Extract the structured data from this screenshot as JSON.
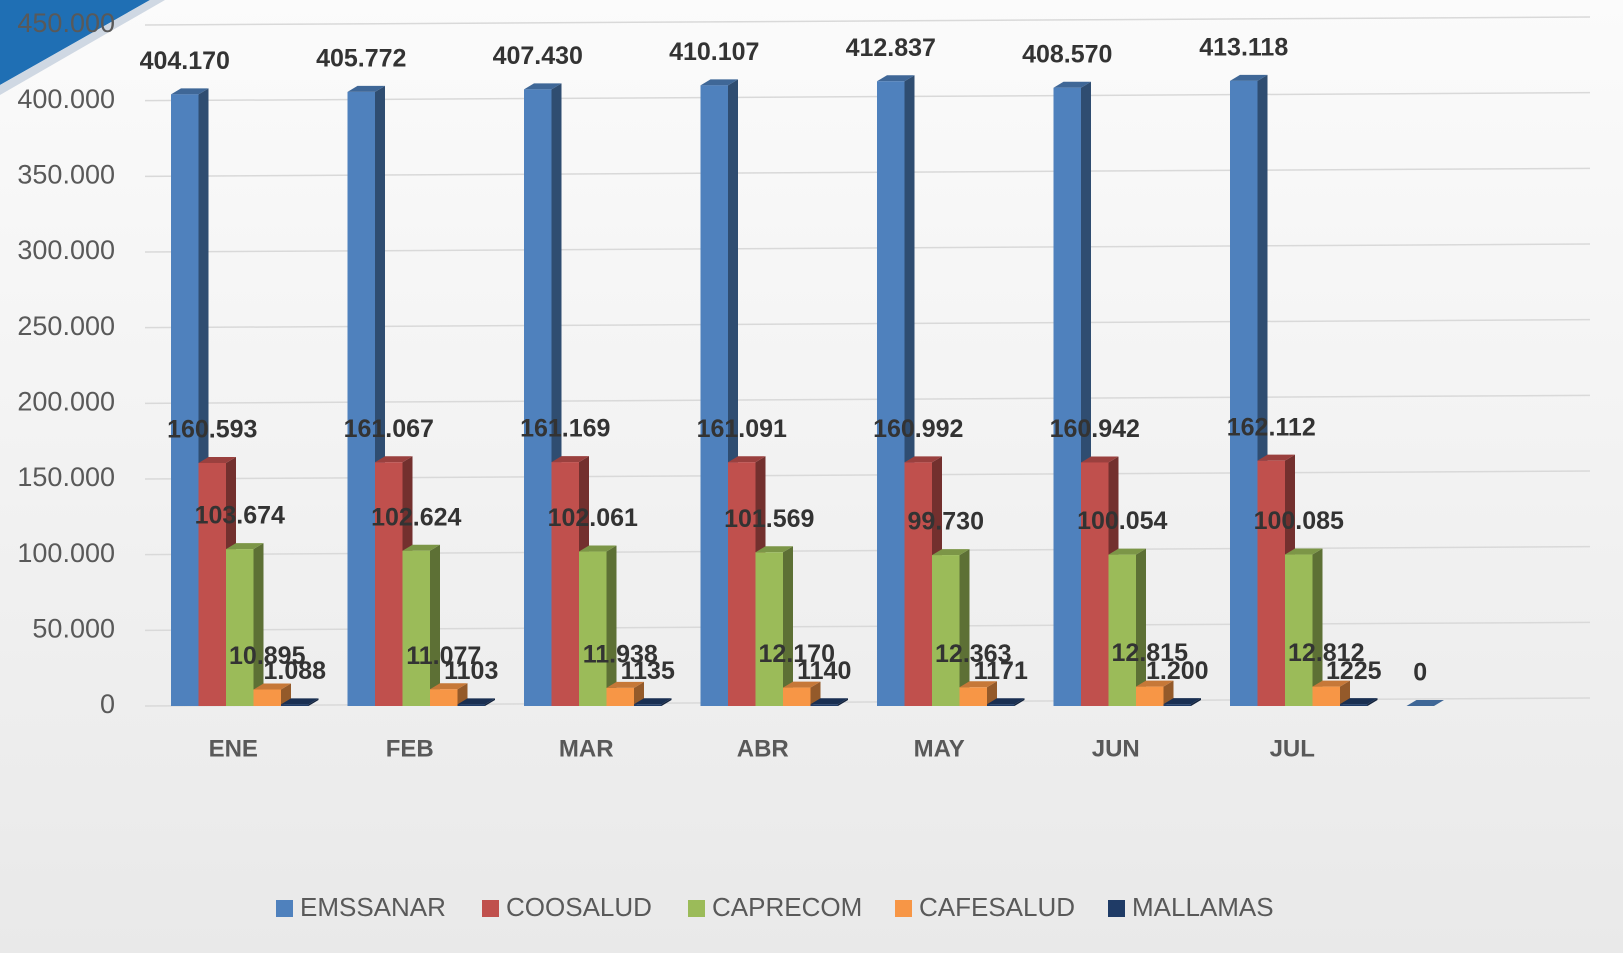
{
  "chart_data": {
    "type": "bar3d",
    "categories": [
      "ENE",
      "FEB",
      "MAR",
      "ABR",
      "MAY",
      "JUN",
      "JUL",
      null
    ],
    "series": [
      {
        "name": "EMSSANAR",
        "color": "#4f81bd",
        "values": [
          404170,
          405772,
          407430,
          410107,
          412837,
          408570,
          413118,
          0
        ],
        "value_labels": [
          "404.170",
          "405.772",
          "407.430",
          "410.107",
          "412.837",
          "408.570",
          "413.118",
          "0"
        ]
      },
      {
        "name": "COOSALUD",
        "color": "#c0504d",
        "values": [
          160593,
          161067,
          161169,
          161091,
          160992,
          160942,
          162112,
          null
        ],
        "value_labels": [
          "160.593",
          "161.067",
          "161.169",
          "161.091",
          "160.992",
          "160.942",
          "162.112",
          null
        ]
      },
      {
        "name": "CAPRECOM",
        "color": "#9bbb59",
        "values": [
          103674,
          102624,
          102061,
          101569,
          99730,
          100054,
          100085,
          null
        ],
        "value_labels": [
          "103.674",
          "102.624",
          "102.061",
          "101.569",
          "99.730",
          "100.054",
          "100.085",
          null
        ]
      },
      {
        "name": "CAFESALUD",
        "color": "#f79646",
        "values": [
          10895,
          11077,
          11938,
          12170,
          12363,
          12815,
          12812,
          null
        ],
        "value_labels": [
          "10.895",
          "11.077",
          "11.938",
          "12.170",
          "12.363",
          "12.815",
          "12.812",
          null
        ]
      },
      {
        "name": "MALLAMAS",
        "color": "#1f3b66",
        "values": [
          1088,
          1103,
          1135,
          1140,
          1171,
          1200,
          1225,
          null
        ],
        "value_labels": [
          "1.088",
          "1103",
          "1135",
          "1140",
          "1171",
          "1.200",
          "1225",
          null
        ]
      }
    ],
    "ylim": [
      0,
      450000
    ],
    "yticks": [
      0,
      {
        "value": 50000,
        "label": "50.000"
      },
      {
        "value": 100000,
        "label": "100.000"
      },
      {
        "value": 150000,
        "label": "150.000"
      },
      {
        "value": 200000,
        "label": "200.000"
      },
      {
        "value": 250000,
        "label": "250.000"
      },
      {
        "value": 300000,
        "label": "300.000"
      },
      {
        "value": 350000,
        "label": "350.000"
      },
      {
        "value": 400000,
        "label": "400.000"
      },
      {
        "value": 450000,
        "label": "450.000"
      }
    ],
    "grid": true,
    "legend": "bottom"
  }
}
